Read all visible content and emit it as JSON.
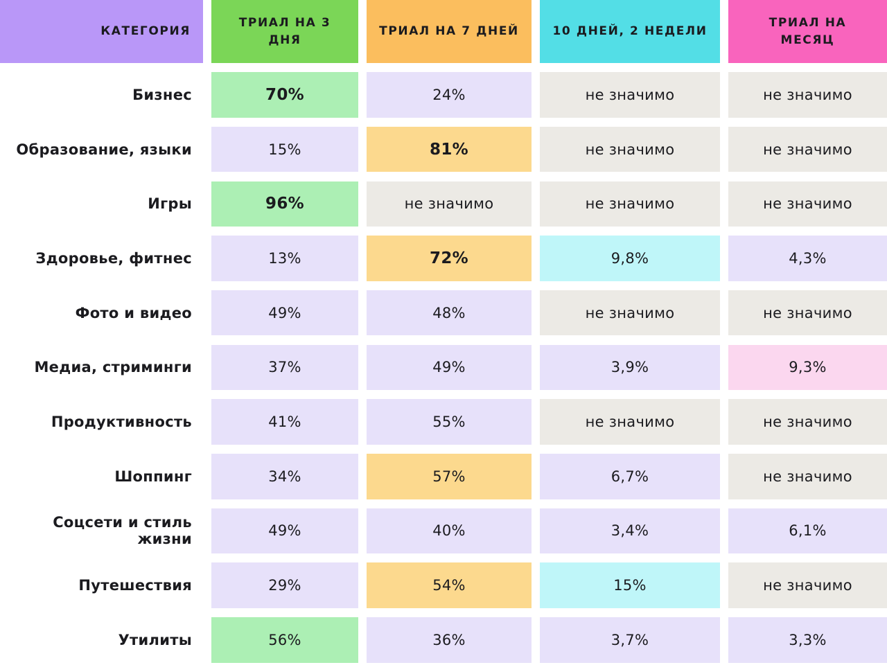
{
  "colors": {
    "header_purple": "#B997F8",
    "header_green": "#7BD657",
    "header_orange": "#FBBE5E",
    "header_cyan": "#53DEE6",
    "header_pink": "#F964BD",
    "cell_green": "#ACEFB4",
    "cell_lavender": "#E7E1FA",
    "cell_muted": "#ECEAE5",
    "cell_orange": "#FCD98E",
    "cell_cyan": "#BFF6F9",
    "cell_pink": "#FBD7EF",
    "text": "#1B1B1F"
  },
  "chart_data": {
    "type": "table",
    "subtype": "heatmap",
    "legend_position": "none",
    "row_header": {
      "label": "КАТЕГОРИЯ",
      "style": "purple"
    },
    "columns": [
      {
        "label": "ТРИАЛ НА 3\nДНЯ",
        "style": "green"
      },
      {
        "label": "ТРИАЛ НА 7 ДНЕЙ",
        "style": "orange"
      },
      {
        "label": "10 ДНЕЙ, 2 НЕДЕЛИ",
        "style": "cyan"
      },
      {
        "label": "ТРИАЛ НА\nМЕСЯЦ",
        "style": "pink"
      }
    ],
    "not_significant_label": "не значимо",
    "rows": [
      {
        "category": "Бизнес",
        "cells": [
          {
            "text": "70%",
            "style": "green",
            "bold": true
          },
          {
            "text": "24%",
            "style": "lavender",
            "bold": false
          },
          {
            "text": "не значимо",
            "style": "muted",
            "bold": false
          },
          {
            "text": "не значимо",
            "style": "muted",
            "bold": false
          }
        ]
      },
      {
        "category": "Образование, языки",
        "cells": [
          {
            "text": "15%",
            "style": "lavender",
            "bold": false
          },
          {
            "text": "81%",
            "style": "orange",
            "bold": true
          },
          {
            "text": "не значимо",
            "style": "muted",
            "bold": false
          },
          {
            "text": "не значимо",
            "style": "muted",
            "bold": false
          }
        ]
      },
      {
        "category": "Игры",
        "cells": [
          {
            "text": "96%",
            "style": "green",
            "bold": true
          },
          {
            "text": "не значимо",
            "style": "muted",
            "bold": false
          },
          {
            "text": "не значимо",
            "style": "muted",
            "bold": false
          },
          {
            "text": "не значимо",
            "style": "muted",
            "bold": false
          }
        ]
      },
      {
        "category": "Здоровье, фитнес",
        "cells": [
          {
            "text": "13%",
            "style": "lavender",
            "bold": false
          },
          {
            "text": "72%",
            "style": "orange",
            "bold": true
          },
          {
            "text": "9,8%",
            "style": "cyan",
            "bold": false
          },
          {
            "text": "4,3%",
            "style": "lavender",
            "bold": false
          }
        ]
      },
      {
        "category": "Фото и видео",
        "cells": [
          {
            "text": "49%",
            "style": "lavender",
            "bold": false
          },
          {
            "text": "48%",
            "style": "lavender",
            "bold": false
          },
          {
            "text": "не значимо",
            "style": "muted",
            "bold": false
          },
          {
            "text": "не значимо",
            "style": "muted",
            "bold": false
          }
        ]
      },
      {
        "category": "Медиа, стриминги",
        "cells": [
          {
            "text": "37%",
            "style": "lavender",
            "bold": false
          },
          {
            "text": "49%",
            "style": "lavender",
            "bold": false
          },
          {
            "text": "3,9%",
            "style": "lavender",
            "bold": false
          },
          {
            "text": "9,3%",
            "style": "pink",
            "bold": false
          }
        ]
      },
      {
        "category": "Продуктивность",
        "cells": [
          {
            "text": "41%",
            "style": "lavender",
            "bold": false
          },
          {
            "text": "55%",
            "style": "lavender",
            "bold": false
          },
          {
            "text": "не значимо",
            "style": "muted",
            "bold": false
          },
          {
            "text": "не значимо",
            "style": "muted",
            "bold": false
          }
        ]
      },
      {
        "category": "Шоппинг",
        "cells": [
          {
            "text": "34%",
            "style": "lavender",
            "bold": false
          },
          {
            "text": "57%",
            "style": "orange",
            "bold": false
          },
          {
            "text": "6,7%",
            "style": "lavender",
            "bold": false
          },
          {
            "text": "не значимо",
            "style": "muted",
            "bold": false
          }
        ]
      },
      {
        "category": "Соцсети и стиль жизни",
        "cells": [
          {
            "text": "49%",
            "style": "lavender",
            "bold": false
          },
          {
            "text": "40%",
            "style": "lavender",
            "bold": false
          },
          {
            "text": "3,4%",
            "style": "lavender",
            "bold": false
          },
          {
            "text": "6,1%",
            "style": "lavender",
            "bold": false
          }
        ]
      },
      {
        "category": "Путешествия",
        "cells": [
          {
            "text": "29%",
            "style": "lavender",
            "bold": false
          },
          {
            "text": "54%",
            "style": "orange",
            "bold": false
          },
          {
            "text": "15%",
            "style": "cyan",
            "bold": false
          },
          {
            "text": "не значимо",
            "style": "muted",
            "bold": false
          }
        ]
      },
      {
        "category": "Утилиты",
        "cells": [
          {
            "text": "56%",
            "style": "green",
            "bold": false
          },
          {
            "text": "36%",
            "style": "lavender",
            "bold": false
          },
          {
            "text": "3,7%",
            "style": "lavender",
            "bold": false
          },
          {
            "text": "3,3%",
            "style": "lavender",
            "bold": false
          }
        ]
      }
    ]
  }
}
